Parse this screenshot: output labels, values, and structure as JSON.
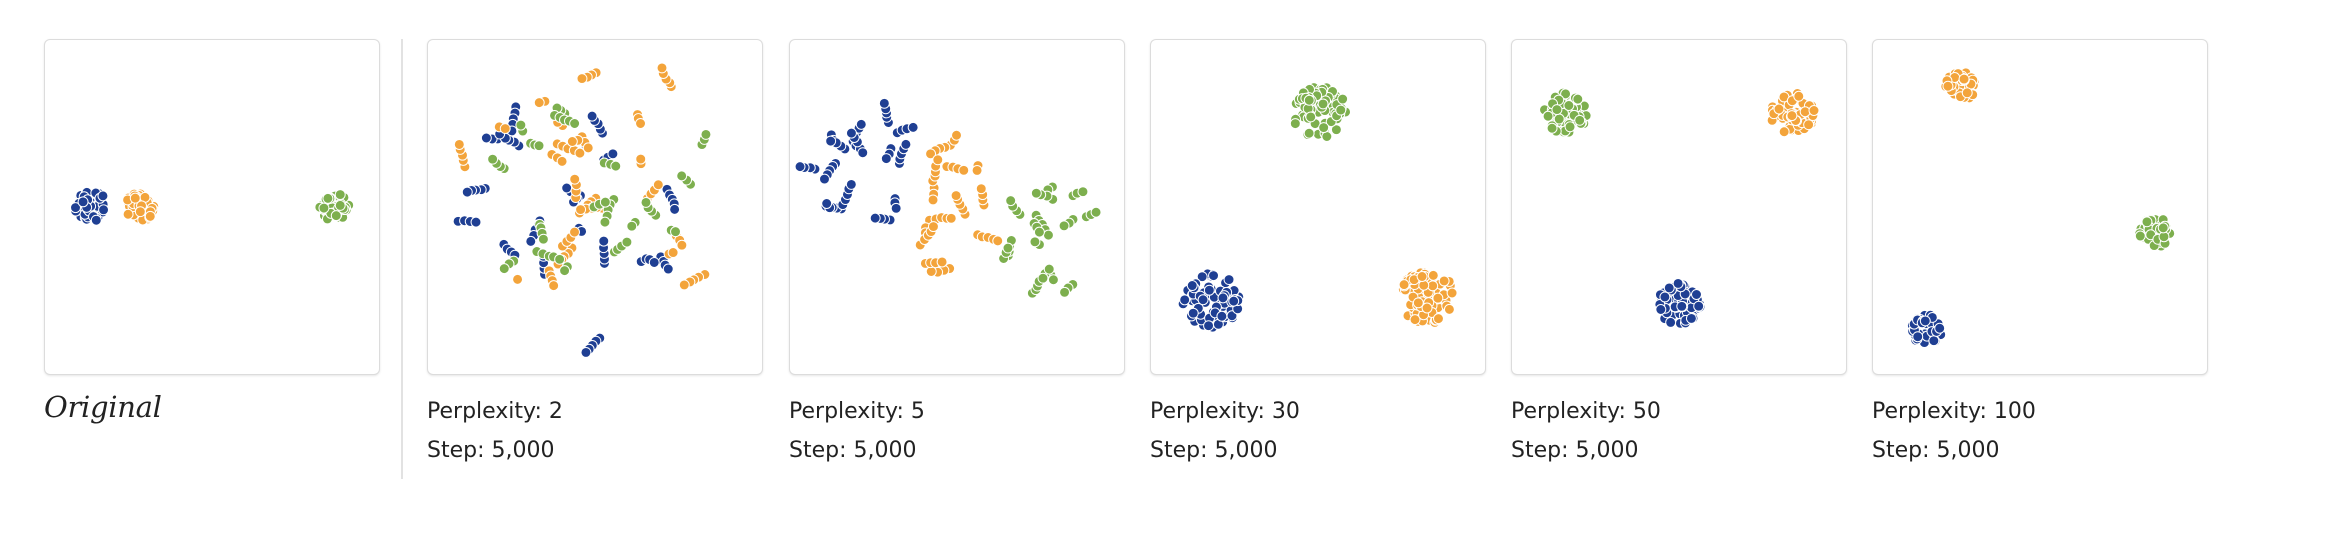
{
  "colors": {
    "blue": "#1f3f93",
    "orange": "#f3a43b",
    "green": "#7daf4e"
  },
  "original": {
    "label": "Original"
  },
  "chart_data": [
    {
      "type": "scatter",
      "title": "Original",
      "clusters": [
        {
          "color": "blue",
          "shape": "blob",
          "cx": 0.14,
          "cy": 0.5,
          "r": 0.05,
          "n": 50
        },
        {
          "color": "orange",
          "shape": "blob",
          "cx": 0.285,
          "cy": 0.5,
          "r": 0.045,
          "n": 45
        },
        {
          "color": "green",
          "shape": "blob",
          "cx": 0.865,
          "cy": 0.5,
          "r": 0.045,
          "n": 45
        }
      ]
    },
    {
      "type": "scatter",
      "perplexity_label": "Perplexity: 2",
      "step_label": "Step: 5,000",
      "perplexity": 2,
      "step": 5000,
      "clusters": [
        {
          "color": "blue",
          "shape": "scattered",
          "cx": 0.45,
          "cy": 0.5,
          "r": 0.4,
          "n": 75
        },
        {
          "color": "orange",
          "shape": "scattered",
          "cx": 0.5,
          "cy": 0.47,
          "r": 0.42,
          "n": 80
        },
        {
          "color": "green",
          "shape": "scattered",
          "cx": 0.5,
          "cy": 0.43,
          "r": 0.36,
          "n": 60
        }
      ]
    },
    {
      "type": "scatter",
      "perplexity_label": "Perplexity: 5",
      "step_label": "Step: 5,000",
      "perplexity": 5,
      "step": 5000,
      "clusters": [
        {
          "color": "blue",
          "shape": "scattered",
          "cx": 0.24,
          "cy": 0.4,
          "r": 0.17,
          "n": 60
        },
        {
          "color": "orange",
          "shape": "scattered",
          "cx": 0.5,
          "cy": 0.5,
          "r": 0.2,
          "n": 55
        },
        {
          "color": "green",
          "shape": "scattered",
          "cx": 0.75,
          "cy": 0.6,
          "r": 0.17,
          "n": 50
        }
      ]
    },
    {
      "type": "scatter",
      "perplexity_label": "Perplexity: 30",
      "step_label": "Step: 5,000",
      "perplexity": 30,
      "step": 5000,
      "clusters": [
        {
          "color": "green",
          "shape": "blob",
          "cx": 0.505,
          "cy": 0.215,
          "r": 0.082,
          "n": 80
        },
        {
          "color": "blue",
          "shape": "blob",
          "cx": 0.18,
          "cy": 0.78,
          "r": 0.085,
          "n": 85
        },
        {
          "color": "orange",
          "shape": "blob",
          "cx": 0.825,
          "cy": 0.77,
          "r": 0.085,
          "n": 80
        }
      ]
    },
    {
      "type": "scatter",
      "perplexity_label": "Perplexity: 50",
      "step_label": "Step: 5,000",
      "perplexity": 50,
      "step": 5000,
      "clusters": [
        {
          "color": "green",
          "shape": "blob",
          "cx": 0.16,
          "cy": 0.22,
          "r": 0.065,
          "n": 70
        },
        {
          "color": "orange",
          "shape": "blob",
          "cx": 0.84,
          "cy": 0.22,
          "r": 0.065,
          "n": 70
        },
        {
          "color": "blue",
          "shape": "blob",
          "cx": 0.5,
          "cy": 0.79,
          "r": 0.065,
          "n": 70
        }
      ]
    },
    {
      "type": "scatter",
      "perplexity_label": "Perplexity: 100",
      "step_label": "Step: 5,000",
      "perplexity": 100,
      "step": 5000,
      "clusters": [
        {
          "color": "orange",
          "shape": "blob",
          "cx": 0.26,
          "cy": 0.14,
          "r": 0.048,
          "n": 45
        },
        {
          "color": "green",
          "shape": "blob",
          "cx": 0.845,
          "cy": 0.575,
          "r": 0.048,
          "n": 45
        },
        {
          "color": "blue",
          "shape": "blob",
          "cx": 0.16,
          "cy": 0.865,
          "r": 0.048,
          "n": 45
        }
      ]
    }
  ]
}
